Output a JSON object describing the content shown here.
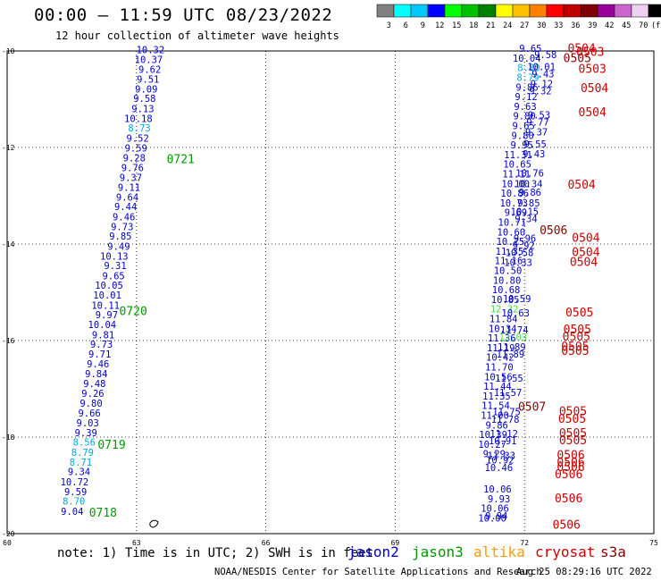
{
  "header": {
    "title": "00:00 – 11:59 UTC 08/23/2022",
    "subtitle": "12 hour collection of altimeter wave heights"
  },
  "colorbar": {
    "colors": [
      "#808080",
      "#00ffff",
      "#00c8ff",
      "#0000ff",
      "#00ff00",
      "#00c000",
      "#008000",
      "#ffff00",
      "#ffc000",
      "#ff8000",
      "#ff0000",
      "#c00000",
      "#800000",
      "#990099",
      "#cc66cc",
      "#f0d0f0",
      "#000000"
    ],
    "labels": [
      "3",
      "6",
      "9",
      "12",
      "15",
      "18",
      "21",
      "24",
      "27",
      "30",
      "33",
      "36",
      "39",
      "42",
      "45",
      "70",
      "(ft)"
    ]
  },
  "footer": {
    "note": "note:  1) Time is in UTC; 2) SWH is in feet",
    "credit": "NOAA/NESDIS Center for Satellite Applications and Research",
    "generated": "Aug 25 08:29:16 UTC 2022"
  },
  "satellites": [
    {
      "name": "jason2",
      "color": "#0000cc"
    },
    {
      "name": "jason3",
      "color": "#009900"
    },
    {
      "name": "altika",
      "color": "#ff9900"
    },
    {
      "name": "cryosat",
      "color": "#cc0000"
    },
    {
      "name": "s3a",
      "color": "#880000"
    }
  ],
  "chart_data": {
    "type": "scatter",
    "title": "12 hour collection of altimeter wave heights",
    "xlim": [
      60,
      75
    ],
    "ylim": [
      -20,
      -10
    ],
    "xticks": [
      60,
      63,
      66,
      69,
      72,
      75
    ],
    "yticks": [
      -10,
      -12,
      -14,
      -16,
      -18,
      -20
    ],
    "grid": true,
    "grid_style": "dotted",
    "left_track": [
      {
        "x": 63.65,
        "y": -10.05,
        "v": "10.32",
        "c": "#0000cc"
      },
      {
        "x": 63.61,
        "y": -10.25,
        "v": "10.37",
        "c": "#0000cc"
      },
      {
        "x": 63.57,
        "y": -10.45,
        "v": "9.62",
        "c": "#0000cc"
      },
      {
        "x": 63.53,
        "y": -10.66,
        "v": "9.51",
        "c": "#0000cc"
      },
      {
        "x": 63.49,
        "y": -10.86,
        "v": "9.09",
        "c": "#0000cc"
      },
      {
        "x": 63.45,
        "y": -11.06,
        "v": "9.58",
        "c": "#0000cc"
      },
      {
        "x": 63.41,
        "y": -11.27,
        "v": "9.13",
        "c": "#0000cc"
      },
      {
        "x": 63.37,
        "y": -11.47,
        "v": "10.18",
        "c": "#0000cc"
      },
      {
        "x": 63.33,
        "y": -11.67,
        "v": "8.73",
        "c": "#00aadd"
      },
      {
        "x": 63.29,
        "y": -11.88,
        "v": "9.52",
        "c": "#0000cc"
      },
      {
        "x": 63.25,
        "y": -12.08,
        "v": "9.59",
        "c": "#0000cc"
      },
      {
        "x": 63.21,
        "y": -12.29,
        "v": "9.28",
        "c": "#0000cc"
      },
      {
        "x": 63.17,
        "y": -12.49,
        "v": "9.76",
        "c": "#0000cc"
      },
      {
        "x": 63.13,
        "y": -12.69,
        "v": "9.37",
        "c": "#0000cc"
      },
      {
        "x": 63.09,
        "y": -12.9,
        "v": "9.11",
        "c": "#0000cc"
      },
      {
        "x": 63.05,
        "y": -13.1,
        "v": "9.64",
        "c": "#0000cc"
      },
      {
        "x": 63.01,
        "y": -13.3,
        "v": "9.44",
        "c": "#0000cc"
      },
      {
        "x": 62.97,
        "y": -13.51,
        "v": "9.46",
        "c": "#0000cc"
      },
      {
        "x": 62.93,
        "y": -13.71,
        "v": "9.73",
        "c": "#0000cc"
      },
      {
        "x": 62.89,
        "y": -13.91,
        "v": "9.85",
        "c": "#0000cc"
      },
      {
        "x": 62.85,
        "y": -14.12,
        "v": "9.49",
        "c": "#0000cc"
      },
      {
        "x": 62.81,
        "y": -14.32,
        "v": "10.13",
        "c": "#0000cc"
      },
      {
        "x": 62.77,
        "y": -14.52,
        "v": "9.31",
        "c": "#0000cc"
      },
      {
        "x": 62.73,
        "y": -14.73,
        "v": "9.65",
        "c": "#0000cc"
      },
      {
        "x": 62.69,
        "y": -14.93,
        "v": "10.05",
        "c": "#0000cc"
      },
      {
        "x": 62.65,
        "y": -15.13,
        "v": "10.01",
        "c": "#0000cc"
      },
      {
        "x": 62.61,
        "y": -15.34,
        "v": "10.11",
        "c": "#0000cc"
      },
      {
        "x": 62.57,
        "y": -15.54,
        "v": "9.97",
        "c": "#0000cc"
      },
      {
        "x": 62.53,
        "y": -15.74,
        "v": "10.04",
        "c": "#0000cc"
      },
      {
        "x": 62.49,
        "y": -15.95,
        "v": "9.81",
        "c": "#0000cc"
      },
      {
        "x": 62.45,
        "y": -16.15,
        "v": "9.73",
        "c": "#0000cc"
      },
      {
        "x": 62.41,
        "y": -16.35,
        "v": "9.71",
        "c": "#0000cc"
      },
      {
        "x": 62.37,
        "y": -16.56,
        "v": "9.46",
        "c": "#0000cc"
      },
      {
        "x": 62.33,
        "y": -16.76,
        "v": "9.84",
        "c": "#0000cc"
      },
      {
        "x": 62.29,
        "y": -16.96,
        "v": "9.48",
        "c": "#0000cc"
      },
      {
        "x": 62.25,
        "y": -17.17,
        "v": "9.26",
        "c": "#0000cc"
      },
      {
        "x": 62.21,
        "y": -17.37,
        "v": "9.80",
        "c": "#0000cc"
      },
      {
        "x": 62.17,
        "y": -17.57,
        "v": "9.66",
        "c": "#0000cc"
      },
      {
        "x": 62.13,
        "y": -17.78,
        "v": "9.03",
        "c": "#0000cc"
      },
      {
        "x": 62.09,
        "y": -17.98,
        "v": "9.39",
        "c": "#0000cc"
      },
      {
        "x": 62.05,
        "y": -18.18,
        "v": "8.56",
        "c": "#00aadd"
      },
      {
        "x": 62.01,
        "y": -18.39,
        "v": "8.79",
        "c": "#00aadd"
      },
      {
        "x": 61.97,
        "y": -18.59,
        "v": "8.71",
        "c": "#00aadd"
      },
      {
        "x": 61.93,
        "y": -18.79,
        "v": "9.34",
        "c": "#0000cc"
      },
      {
        "x": 61.89,
        "y": -19.0,
        "v": "10.72",
        "c": "#0000cc"
      },
      {
        "x": 61.85,
        "y": -19.2,
        "v": "9.59",
        "c": "#0000cc"
      },
      {
        "x": 61.81,
        "y": -19.4,
        "v": "8.70",
        "c": "#00aadd"
      },
      {
        "x": 61.77,
        "y": -19.61,
        "v": "9.04",
        "c": "#0000cc"
      }
    ],
    "left_times": [
      {
        "x": 63.7,
        "y": -12.32,
        "t": "0721"
      },
      {
        "x": 62.6,
        "y": -15.47,
        "t": "0720"
      },
      {
        "x": 62.1,
        "y": -18.24,
        "t": "0719"
      },
      {
        "x": 61.9,
        "y": -19.65,
        "t": "0718"
      }
    ],
    "right_track_a": [
      {
        "x": 72.4,
        "y": -10.02,
        "v": "9.65",
        "c": "#0000cc"
      },
      {
        "x": 72.38,
        "y": -10.22,
        "v": "10.04",
        "c": "#0000cc"
      },
      {
        "x": 72.36,
        "y": -10.42,
        "v": "8.80",
        "c": "#00aadd"
      },
      {
        "x": 72.34,
        "y": -10.62,
        "v": "8.79",
        "c": "#00aadd"
      },
      {
        "x": 72.32,
        "y": -10.82,
        "v": "9.86",
        "c": "#0000cc"
      },
      {
        "x": 72.3,
        "y": -11.02,
        "v": "9.12",
        "c": "#0000cc"
      },
      {
        "x": 72.28,
        "y": -11.22,
        "v": "9.63",
        "c": "#0000cc"
      },
      {
        "x": 72.26,
        "y": -11.42,
        "v": "9.80",
        "c": "#0000cc"
      },
      {
        "x": 72.24,
        "y": -11.62,
        "v": "9.65",
        "c": "#0000cc"
      },
      {
        "x": 72.22,
        "y": -11.82,
        "v": "9.80",
        "c": "#0000cc"
      },
      {
        "x": 72.2,
        "y": -12.02,
        "v": "9.95",
        "c": "#0000cc"
      },
      {
        "x": 72.18,
        "y": -12.22,
        "v": "11.31",
        "c": "#0000cc"
      },
      {
        "x": 72.16,
        "y": -12.42,
        "v": "10.65",
        "c": "#0000cc"
      },
      {
        "x": 72.14,
        "y": -12.62,
        "v": "11.11",
        "c": "#0000cc"
      },
      {
        "x": 72.12,
        "y": -12.82,
        "v": "10.00",
        "c": "#0000cc"
      },
      {
        "x": 72.1,
        "y": -13.02,
        "v": "10.86",
        "c": "#0000cc"
      },
      {
        "x": 72.08,
        "y": -13.22,
        "v": "10.73",
        "c": "#0000cc"
      },
      {
        "x": 72.06,
        "y": -13.42,
        "v": "9.69",
        "c": "#0000cc"
      },
      {
        "x": 72.04,
        "y": -13.62,
        "v": "10.71",
        "c": "#0000cc"
      },
      {
        "x": 72.02,
        "y": -13.82,
        "v": "10.60",
        "c": "#0000cc"
      },
      {
        "x": 72.0,
        "y": -14.02,
        "v": "10.25",
        "c": "#0000cc"
      },
      {
        "x": 71.98,
        "y": -14.22,
        "v": "11.35",
        "c": "#0000cc"
      },
      {
        "x": 71.96,
        "y": -14.42,
        "v": "11.16",
        "c": "#0000cc"
      },
      {
        "x": 71.94,
        "y": -14.62,
        "v": "10.50",
        "c": "#0000cc"
      },
      {
        "x": 71.92,
        "y": -14.82,
        "v": "10.80",
        "c": "#0000cc"
      },
      {
        "x": 71.9,
        "y": -15.02,
        "v": "10.68",
        "c": "#0000cc"
      },
      {
        "x": 71.88,
        "y": -15.22,
        "v": "10.85",
        "c": "#0000cc"
      },
      {
        "x": 71.86,
        "y": -15.42,
        "v": "12.32",
        "c": "#44dd44"
      },
      {
        "x": 71.84,
        "y": -15.62,
        "v": "11.84",
        "c": "#0000cc"
      },
      {
        "x": 71.82,
        "y": -15.82,
        "v": "10.34",
        "c": "#0000cc"
      },
      {
        "x": 71.8,
        "y": -16.02,
        "v": "11.36",
        "c": "#0000cc"
      },
      {
        "x": 71.78,
        "y": -16.22,
        "v": "11.19",
        "c": "#0000cc"
      },
      {
        "x": 71.76,
        "y": -16.42,
        "v": "10.42",
        "c": "#0000cc"
      },
      {
        "x": 71.74,
        "y": -16.62,
        "v": "11.70",
        "c": "#0000cc"
      },
      {
        "x": 71.72,
        "y": -16.82,
        "v": "10.56",
        "c": "#0000cc"
      },
      {
        "x": 71.7,
        "y": -17.02,
        "v": "11.44",
        "c": "#0000cc"
      },
      {
        "x": 71.68,
        "y": -17.22,
        "v": "11.35",
        "c": "#0000cc"
      },
      {
        "x": 71.66,
        "y": -17.42,
        "v": "11.54",
        "c": "#0000cc"
      },
      {
        "x": 71.64,
        "y": -17.62,
        "v": "11.00",
        "c": "#0000cc"
      },
      {
        "x": 71.62,
        "y": -17.82,
        "v": "9.86",
        "c": "#0000cc"
      },
      {
        "x": 71.6,
        "y": -18.02,
        "v": "10.39",
        "c": "#0000cc"
      },
      {
        "x": 71.58,
        "y": -18.22,
        "v": "10.27",
        "c": "#0000cc"
      },
      {
        "x": 71.56,
        "y": -18.42,
        "v": "9.29",
        "c": "#0000cc"
      }
    ],
    "right_track_b": [
      {
        "x": 72.75,
        "y": -10.15,
        "v": "9.58",
        "c": "#0000cc"
      },
      {
        "x": 72.72,
        "y": -10.4,
        "v": "10.01",
        "c": "#0000cc"
      },
      {
        "x": 72.69,
        "y": -10.55,
        "v": "9.43",
        "c": "#0000cc"
      },
      {
        "x": 72.66,
        "y": -10.75,
        "v": "9.12",
        "c": "#0000cc"
      },
      {
        "x": 72.63,
        "y": -10.9,
        "v": "9.32",
        "c": "#0000cc"
      },
      {
        "x": 72.6,
        "y": -11.4,
        "v": "9.53",
        "c": "#0000cc"
      },
      {
        "x": 72.57,
        "y": -11.55,
        "v": "9.77",
        "c": "#0000cc"
      },
      {
        "x": 72.54,
        "y": -11.75,
        "v": "9.37",
        "c": "#0000cc"
      },
      {
        "x": 72.51,
        "y": -12.0,
        "v": "9.55",
        "c": "#0000cc"
      },
      {
        "x": 72.48,
        "y": -12.2,
        "v": "9.43",
        "c": "#0000cc"
      },
      {
        "x": 72.45,
        "y": -12.6,
        "v": "10.76",
        "c": "#0000cc"
      },
      {
        "x": 72.42,
        "y": -12.82,
        "v": "10.34",
        "c": "#0000cc"
      },
      {
        "x": 72.39,
        "y": -13.0,
        "v": "9.86",
        "c": "#0000cc"
      },
      {
        "x": 72.36,
        "y": -13.22,
        "v": "9.85",
        "c": "#0000cc"
      },
      {
        "x": 72.33,
        "y": -13.4,
        "v": "10.15",
        "c": "#0000cc"
      },
      {
        "x": 72.3,
        "y": -13.55,
        "v": "9.34",
        "c": "#0000cc"
      },
      {
        "x": 72.27,
        "y": -13.95,
        "v": "9.96",
        "c": "#0000cc"
      },
      {
        "x": 72.24,
        "y": -14.1,
        "v": "9.92",
        "c": "#0000cc"
      },
      {
        "x": 72.21,
        "y": -14.25,
        "v": "10.58",
        "c": "#0000cc"
      },
      {
        "x": 72.18,
        "y": -14.45,
        "v": "10.33",
        "c": "#0000cc"
      },
      {
        "x": 72.15,
        "y": -15.2,
        "v": "10.59",
        "c": "#0000cc"
      },
      {
        "x": 72.12,
        "y": -15.5,
        "v": "10.63",
        "c": "#0000cc"
      },
      {
        "x": 72.09,
        "y": -15.85,
        "v": "11.74",
        "c": "#0000cc"
      },
      {
        "x": 72.06,
        "y": -16.0,
        "v": "12.03",
        "c": "#44dd44"
      },
      {
        "x": 72.03,
        "y": -16.2,
        "v": "11.89",
        "c": "#0000cc"
      },
      {
        "x": 72.0,
        "y": -16.35,
        "v": "11.89",
        "c": "#0000cc"
      },
      {
        "x": 71.97,
        "y": -16.85,
        "v": "11.55",
        "c": "#0000cc"
      },
      {
        "x": 71.94,
        "y": -17.15,
        "v": "11.57",
        "c": "#0000cc"
      },
      {
        "x": 71.91,
        "y": -17.55,
        "v": "11.75",
        "c": "#0000cc"
      },
      {
        "x": 71.88,
        "y": -17.7,
        "v": "11.78",
        "c": "#0000cc"
      },
      {
        "x": 71.85,
        "y": -18.0,
        "v": "11.12",
        "c": "#0000cc"
      },
      {
        "x": 71.82,
        "y": -18.15,
        "v": "10.91",
        "c": "#0000cc"
      },
      {
        "x": 71.79,
        "y": -18.45,
        "v": "11.33",
        "c": "#0000cc"
      },
      {
        "x": 71.76,
        "y": -18.55,
        "v": "10.92",
        "c": "#0000cc"
      },
      {
        "x": 71.73,
        "y": -18.7,
        "v": "10.46",
        "c": "#0000cc"
      },
      {
        "x": 71.7,
        "y": -19.15,
        "v": "10.06",
        "c": "#0000cc"
      },
      {
        "x": 71.67,
        "y": -19.35,
        "v": "9.93",
        "c": "#0000cc"
      },
      {
        "x": 71.64,
        "y": -19.55,
        "v": "10.06",
        "c": "#0000cc"
      },
      {
        "x": 71.61,
        "y": -19.7,
        "v": "9.94",
        "c": "#0000cc"
      },
      {
        "x": 71.58,
        "y": -19.75,
        "v": "10.00",
        "c": "#0000cc"
      }
    ],
    "right_times": [
      {
        "x": 73.0,
        "y": -10.03,
        "t": "0504",
        "c": "#cc0000"
      },
      {
        "x": 73.2,
        "y": -10.1,
        "t": "0503",
        "c": "#cc0000"
      },
      {
        "x": 72.9,
        "y": -10.23,
        "t": "0505",
        "c": "#880000"
      },
      {
        "x": 73.25,
        "y": -10.45,
        "t": "0503",
        "c": "#cc0000"
      },
      {
        "x": 73.3,
        "y": -10.85,
        "t": "0504",
        "c": "#cc0000"
      },
      {
        "x": 73.25,
        "y": -11.35,
        "t": "0504",
        "c": "#cc0000"
      },
      {
        "x": 73.0,
        "y": -12.85,
        "t": "0504",
        "c": "#cc0000"
      },
      {
        "x": 72.35,
        "y": -13.8,
        "t": "0506",
        "c": "#880000"
      },
      {
        "x": 73.1,
        "y": -13.95,
        "t": "0504",
        "c": "#cc0000"
      },
      {
        "x": 73.1,
        "y": -14.25,
        "t": "0504",
        "c": "#cc0000"
      },
      {
        "x": 73.05,
        "y": -14.45,
        "t": "0504",
        "c": "#cc0000"
      },
      {
        "x": 72.95,
        "y": -15.5,
        "t": "0505",
        "c": "#cc0000"
      },
      {
        "x": 72.9,
        "y": -15.85,
        "t": "0505",
        "c": "#cc0000"
      },
      {
        "x": 72.88,
        "y": -16.0,
        "t": "0505",
        "c": "#cc0000"
      },
      {
        "x": 72.85,
        "y": -16.2,
        "t": "0505",
        "c": "#cc0000"
      },
      {
        "x": 72.85,
        "y": -16.3,
        "t": "0505",
        "c": "#cc0000"
      },
      {
        "x": 71.85,
        "y": -17.45,
        "t": "0507",
        "c": "#880000"
      },
      {
        "x": 72.8,
        "y": -17.55,
        "t": "0505",
        "c": "#cc0000"
      },
      {
        "x": 72.78,
        "y": -17.7,
        "t": "0505",
        "c": "#cc0000"
      },
      {
        "x": 72.8,
        "y": -18.0,
        "t": "0505",
        "c": "#cc0000"
      },
      {
        "x": 72.8,
        "y": -18.15,
        "t": "0505",
        "c": "#cc0000"
      },
      {
        "x": 72.75,
        "y": -18.45,
        "t": "0506",
        "c": "#cc0000"
      },
      {
        "x": 72.75,
        "y": -18.6,
        "t": "0506",
        "c": "#cc0000"
      },
      {
        "x": 72.75,
        "y": -18.7,
        "t": "0506",
        "c": "#cc0000"
      },
      {
        "x": 72.7,
        "y": -18.85,
        "t": "0506",
        "c": "#cc0000"
      },
      {
        "x": 72.7,
        "y": -19.35,
        "t": "0506",
        "c": "#cc0000"
      },
      {
        "x": 72.65,
        "y": -19.9,
        "t": "0506",
        "c": "#cc0000"
      }
    ]
  }
}
